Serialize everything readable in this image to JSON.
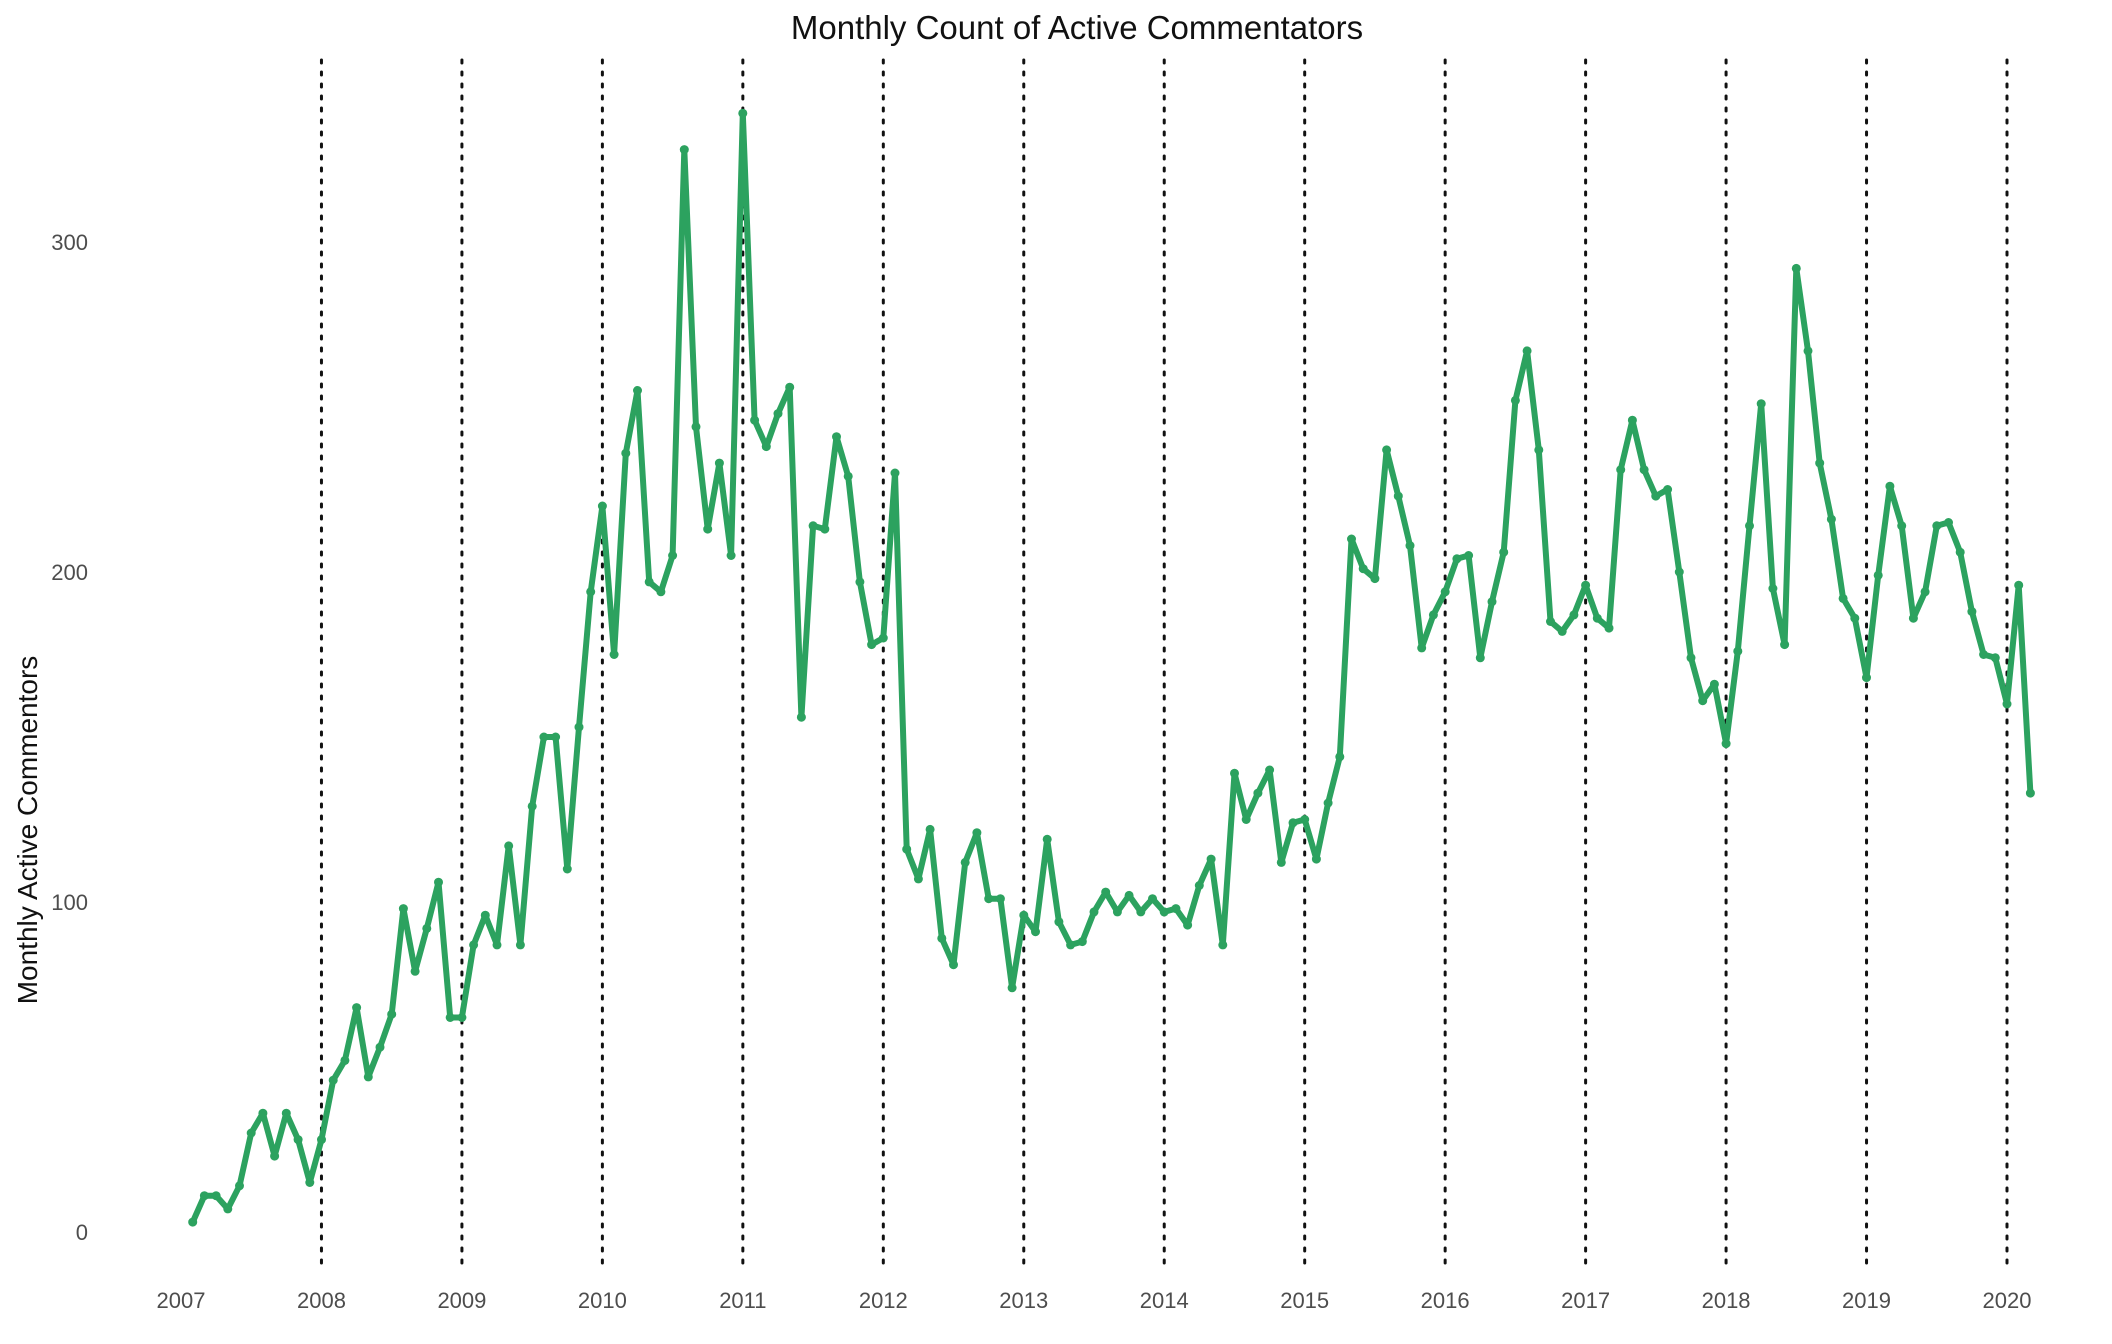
{
  "chart_data": {
    "type": "line",
    "title": "Monthly Count of Active Commentators",
    "xlabel": "",
    "ylabel": "Monthly Active Commentors",
    "x_axis": "date",
    "x_ticks": [
      "2007",
      "2008",
      "2009",
      "2010",
      "2011",
      "2012",
      "2013",
      "2014",
      "2015",
      "2016",
      "2017",
      "2018",
      "2019",
      "2020"
    ],
    "y_ticks": [
      0,
      100,
      200,
      300
    ],
    "ylim": [
      -12,
      355
    ],
    "xlim": [
      "2007-01",
      "2020-04"
    ],
    "grid": "vertical dotted lines at year boundaries 2008-2020",
    "legend": "none",
    "colors": {
      "line": "#2ca25f",
      "gridline": "#111111"
    },
    "series": [
      {
        "x": [
          "2007-02",
          "2007-03",
          "2007-04",
          "2007-05",
          "2007-06",
          "2007-07",
          "2007-08",
          "2007-09",
          "2007-10",
          "2007-11",
          "2007-12",
          "2008-01",
          "2008-02",
          "2008-03",
          "2008-04",
          "2008-05",
          "2008-06",
          "2008-07",
          "2008-08",
          "2008-09",
          "2008-10",
          "2008-11",
          "2008-12",
          "2009-01",
          "2009-02",
          "2009-03",
          "2009-04",
          "2009-05",
          "2009-06",
          "2009-07",
          "2009-08",
          "2009-09",
          "2009-10",
          "2009-11",
          "2009-12",
          "2010-01",
          "2010-02",
          "2010-03",
          "2010-04",
          "2010-05",
          "2010-06",
          "2010-07",
          "2010-08",
          "2010-09",
          "2010-10",
          "2010-11",
          "2010-12",
          "2011-01",
          "2011-02",
          "2011-03",
          "2011-04",
          "2011-05",
          "2011-06",
          "2011-07",
          "2011-08",
          "2011-09",
          "2011-10",
          "2011-11",
          "2011-12",
          "2012-01",
          "2012-02",
          "2012-03",
          "2012-04",
          "2012-05",
          "2012-06",
          "2012-07",
          "2012-08",
          "2012-09",
          "2012-10",
          "2012-11",
          "2012-12",
          "2013-01",
          "2013-02",
          "2013-03",
          "2013-04",
          "2013-05",
          "2013-06",
          "2013-07",
          "2013-08",
          "2013-09",
          "2013-10",
          "2013-11",
          "2013-12",
          "2014-01",
          "2014-02",
          "2014-03",
          "2014-04",
          "2014-05",
          "2014-06",
          "2014-07",
          "2014-08",
          "2014-09",
          "2014-10",
          "2014-11",
          "2014-12",
          "2015-01",
          "2015-02",
          "2015-03",
          "2015-04",
          "2015-05",
          "2015-06",
          "2015-07",
          "2015-08",
          "2015-09",
          "2015-10",
          "2015-11",
          "2015-12",
          "2016-01",
          "2016-02",
          "2016-03",
          "2016-04",
          "2016-05",
          "2016-06",
          "2016-07",
          "2016-08",
          "2016-09",
          "2016-10",
          "2016-11",
          "2016-12",
          "2017-01",
          "2017-02",
          "2017-03",
          "2017-04",
          "2017-05",
          "2017-06",
          "2017-07",
          "2017-08",
          "2017-09",
          "2017-10",
          "2017-11",
          "2017-12",
          "2018-01",
          "2018-02",
          "2018-03",
          "2018-04",
          "2018-05",
          "2018-06",
          "2018-07",
          "2018-08",
          "2018-09",
          "2018-10",
          "2018-11",
          "2018-12",
          "2019-01",
          "2019-02",
          "2019-03",
          "2019-04",
          "2019-05",
          "2019-06",
          "2019-07",
          "2019-08",
          "2019-09",
          "2019-10",
          "2019-11",
          "2019-12",
          "2020-01",
          "2020-02",
          "2020-03"
        ],
        "values": [
          3,
          11,
          11,
          7,
          14,
          30,
          36,
          23,
          36,
          28,
          15,
          28,
          46,
          52,
          68,
          47,
          56,
          66,
          98,
          79,
          92,
          106,
          65,
          65,
          87,
          96,
          87,
          117,
          87,
          129,
          150,
          150,
          110,
          153,
          194,
          220,
          175,
          236,
          255,
          197,
          194,
          205,
          328,
          244,
          213,
          233,
          205,
          339,
          246,
          238,
          248,
          256,
          156,
          214,
          213,
          241,
          229,
          197,
          178,
          180,
          230,
          116,
          107,
          122,
          89,
          81,
          112,
          121,
          101,
          101,
          74,
          96,
          91,
          119,
          94,
          87,
          88,
          97,
          103,
          97,
          102,
          97,
          101,
          97,
          98,
          93,
          105,
          113,
          87,
          139,
          125,
          133,
          140,
          112,
          124,
          125,
          113,
          130,
          144,
          210,
          201,
          198,
          237,
          223,
          208,
          177,
          187,
          194,
          204,
          205,
          174,
          191,
          206,
          252,
          267,
          237,
          185,
          182,
          187,
          196,
          186,
          183,
          231,
          246,
          231,
          223,
          225,
          200,
          174,
          161,
          166,
          148,
          176,
          214,
          251,
          195,
          178,
          292,
          267,
          233,
          216,
          192,
          186,
          168,
          199,
          226,
          214,
          186,
          194,
          214,
          215,
          206,
          188,
          175,
          174,
          160,
          196,
          133
        ]
      }
    ]
  }
}
